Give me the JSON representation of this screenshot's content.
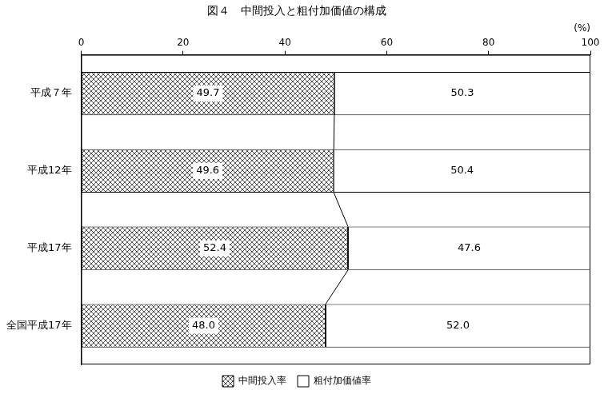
{
  "chart_data": {
    "type": "bar",
    "title": "図４　中間投入と粗付加価値の構成",
    "x_label": "(%)",
    "orientation": "horizontal",
    "stacked": true,
    "data_labels": true,
    "grid": false,
    "legend": "bottom",
    "categories": [
      "平成７年",
      "平成12年",
      "平成17年",
      "全国平成17年"
    ],
    "series": [
      {
        "name": "中間投入率",
        "color": "#555555",
        "values": [
          49.7,
          49.6,
          52.4,
          48.0
        ],
        "value_labels": [
          "49.7",
          "49.6",
          "52.4",
          "48.0"
        ]
      },
      {
        "name": "粗付加価値率",
        "color": "#ffffff",
        "values": [
          50.3,
          50.4,
          47.6,
          52.0
        ],
        "value_labels": [
          "50.3",
          "50.4",
          "47.6",
          "52.0"
        ]
      }
    ],
    "xlim": [
      0,
      100
    ],
    "xticks": [
      0,
      20,
      40,
      60,
      80,
      100
    ]
  }
}
